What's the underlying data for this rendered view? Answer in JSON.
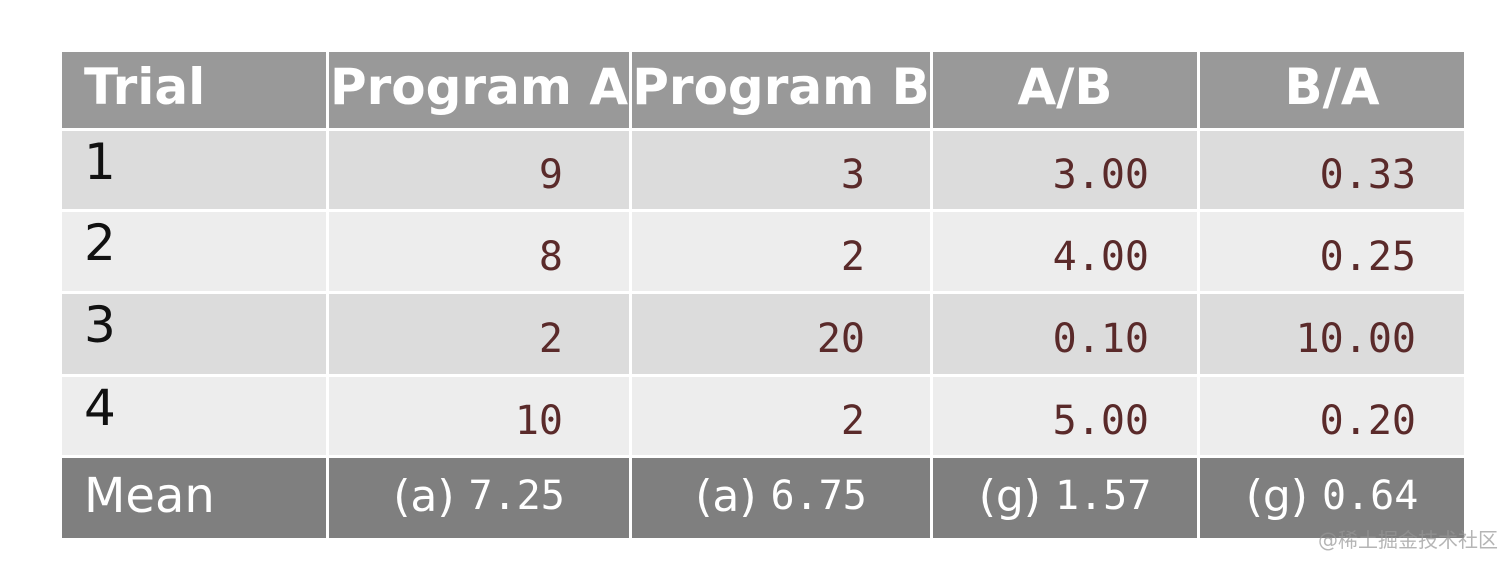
{
  "chart_data": {
    "type": "table",
    "columns": [
      "Trial",
      "Program A",
      "Program B",
      "A/B",
      "B/A"
    ],
    "rows": [
      [
        "1",
        "9",
        "3",
        "3.00",
        "0.33"
      ],
      [
        "2",
        "8",
        "2",
        "4.00",
        "0.25"
      ],
      [
        "3",
        "2",
        "20",
        "0.10",
        "10.00"
      ],
      [
        "4",
        "10",
        "2",
        "5.00",
        "0.20"
      ]
    ],
    "mean": {
      "label": "Mean",
      "cells": [
        {
          "prefix": "(a)",
          "value": "7.25"
        },
        {
          "prefix": "(a)",
          "value": "6.75"
        },
        {
          "prefix": "(g)",
          "value": "1.57"
        },
        {
          "prefix": "(g)",
          "value": "0.64"
        }
      ]
    }
  },
  "colors": {
    "header_bg": "#999999",
    "mean_bg": "#7f7f7f",
    "row_dark": "#dcdcdc",
    "row_light": "#ededed",
    "value_text": "#5a2a2a"
  },
  "watermark": "@稀土掘金技术社区"
}
